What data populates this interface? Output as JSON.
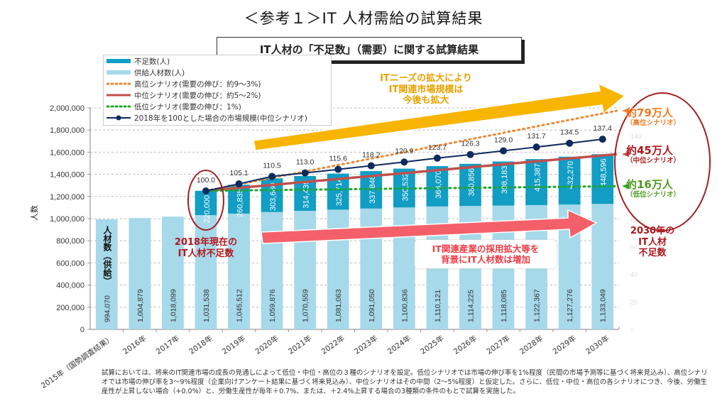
{
  "page": {
    "title": "＜参考１＞IT 人材需給の試算結果",
    "subtitle": "IT人材の「不足数」（需要）に関する試算結果"
  },
  "colors": {
    "shortage_bar": "#119dc4",
    "supply_bar": "#a6d9ea",
    "high_scenario": "#ee8833",
    "mid_scenario": "#c0504d",
    "low_scenario": "#1fa52a",
    "market_index": "#0f2a5e",
    "yellow_arrow": "#f7b500",
    "red_arrow": "#f4606a",
    "ellipse": "#a01f23"
  },
  "legend": [
    {
      "key": "shortage",
      "label": "不足数(人)"
    },
    {
      "key": "supply",
      "label": "供給人材数(人)"
    },
    {
      "key": "high",
      "label": "高位シナリオ(需要の伸び：約9〜3%)"
    },
    {
      "key": "mid",
      "label": "中位シナリオ(需要の伸び：約5〜2%)"
    },
    {
      "key": "low",
      "label": "低位シナリオ(需要の伸び：1%)"
    },
    {
      "key": "index",
      "label": "2018年を100とした場合の市場規模(中位シナリオ)"
    }
  ],
  "annotations": {
    "yellow_arrow_text": [
      "ITニーズの拡大により",
      "IT関連市場規模は",
      "今後も拡大"
    ],
    "red_arrow_text": [
      "IT関連産業の採用拡大等を",
      "背景にIT人材数は増加"
    ],
    "current_shortage": [
      "2018年現在の",
      "IT人材不足数"
    ],
    "supply_label": "人材数（供給）",
    "high_value": "約79万人",
    "high_label": "（高位シナリオ）",
    "mid_value": "約45万人",
    "mid_label": "（中位シナリオ）",
    "low_value": "約16万人",
    "low_label": "（低位シナリオ）",
    "shortage_2030": [
      "2030年の",
      "IT人材",
      "不足数"
    ]
  },
  "chart_data": {
    "type": "bar",
    "title": "IT人材の「不足数」（需要）に関する試算結果",
    "xlabel": "",
    "ylabel": "人数",
    "ylim": [
      0,
      2000000
    ],
    "yticks": [
      0,
      200000,
      400000,
      600000,
      800000,
      1000000,
      1200000,
      1400000,
      1600000,
      1800000,
      2000000
    ],
    "ytick_labels": [
      "0",
      "200,000",
      "400,000",
      "600,000",
      "800,000",
      "1,000,000",
      "1,200,000",
      "1,400,000",
      "1,600,000",
      "1,800,000",
      "2,000,000"
    ],
    "categories": [
      "2015年（国勢調査結果）",
      "2016年",
      "2017年",
      "2018年",
      "2019年",
      "2020年",
      "2021年",
      "2022年",
      "2023年",
      "2024年",
      "2025年",
      "2026年",
      "2027年",
      "2028年",
      "2029年",
      "2030年"
    ],
    "series": [
      {
        "name": "供給人材数(人)",
        "type": "bar-stack",
        "values": [
          994070,
          1004879,
          1018099,
          1031538,
          1045512,
          1059876,
          1070559,
          1081063,
          1091050,
          1100836,
          1110121,
          1114225,
          1118085,
          1122367,
          1127276,
          1133049
        ],
        "labels": [
          "994,070",
          "1,004,879",
          "1,018,099",
          "1,031,538",
          "1,045,512",
          "1,059,876",
          "1,070,559",
          "1,081,063",
          "1,091,050",
          "1,100,836",
          "1,110,121",
          "1,114,225",
          "1,118,085",
          "1,122,367",
          "1,127,276",
          "1,133,049"
        ]
      },
      {
        "name": "不足数(人)",
        "type": "bar-stack",
        "values": [
          null,
          null,
          null,
          220000,
          260835,
          303680,
          314439,
          325714,
          337848,
          350532,
          364070,
          380856,
          398183,
          415387,
          432270,
          448596
        ],
        "labels": [
          null,
          null,
          null,
          "220,000",
          "260,835",
          "303,680",
          "314,439",
          "325,714",
          "337,848",
          "350,532",
          "364,070",
          "380,856",
          "398,183",
          "415,387",
          "432,270",
          "448,596"
        ]
      },
      {
        "name": "高位シナリオ(需要の伸び：約9〜3%)",
        "type": "line-dotted",
        "start": {
          "year": "2018年",
          "value": 1251538
        },
        "end": {
          "year": "2030年",
          "value": 1923000
        }
      },
      {
        "name": "中位シナリオ(需要の伸び：約5〜2%)",
        "type": "line",
        "start": {
          "year": "2018年",
          "value": 1251538
        },
        "end": {
          "year": "2030年",
          "value": 1581645
        }
      },
      {
        "name": "低位シナリオ(需要の伸び：1%)",
        "type": "line-dotted",
        "start": {
          "year": "2018年",
          "value": 1251538
        },
        "end": {
          "year": "2030年",
          "value": 1293000
        }
      },
      {
        "name": "2018年を100とした場合の市場規模(中位シナリオ)",
        "type": "line-marker",
        "axis": "secondary",
        "values": [
          null,
          null,
          null,
          100.0,
          105.1,
          110.5,
          113.0,
          115.6,
          118.2,
          120.9,
          123.7,
          126.3,
          129.0,
          131.7,
          134.5,
          137.4
        ],
        "labels": [
          null,
          null,
          null,
          "100.0",
          "105.1",
          "110.5",
          "113.0",
          "115.6",
          "118.2",
          "120.9",
          "123.7",
          "126.3",
          "129.0",
          "131.7",
          "134.5",
          "137.4"
        ]
      }
    ],
    "secondary_axis": {
      "ylim": [
        0,
        160
      ],
      "ticks": [
        0,
        20,
        40,
        60,
        80,
        100,
        120,
        140,
        160
      ],
      "visible": "faint"
    },
    "grid": true,
    "legend_position": "top-left"
  },
  "footnote": "試算においては、将来のIT関連市場の成長の見通しによって低位・中位・高位の３種のシナリオを設定。低位シナリオでは市場の伸び率を1%程度（民間の市場予測等に基づく将来見込み）、高位シナリオでは市場の伸び率を3〜9%程度（企業向けアンケート結果に基づく将来見込み）、中位シナリオはその中間（2〜5%程度）と仮定した。さらに、低位・中位・高位の各シナリオにつき、今後、労働生産性が上昇しない場合（+0.0%）と、労働生産性が毎年＋0.7%、または、＋2.4%上昇する場合の3種類の条件のもとで試算を実施した。"
}
